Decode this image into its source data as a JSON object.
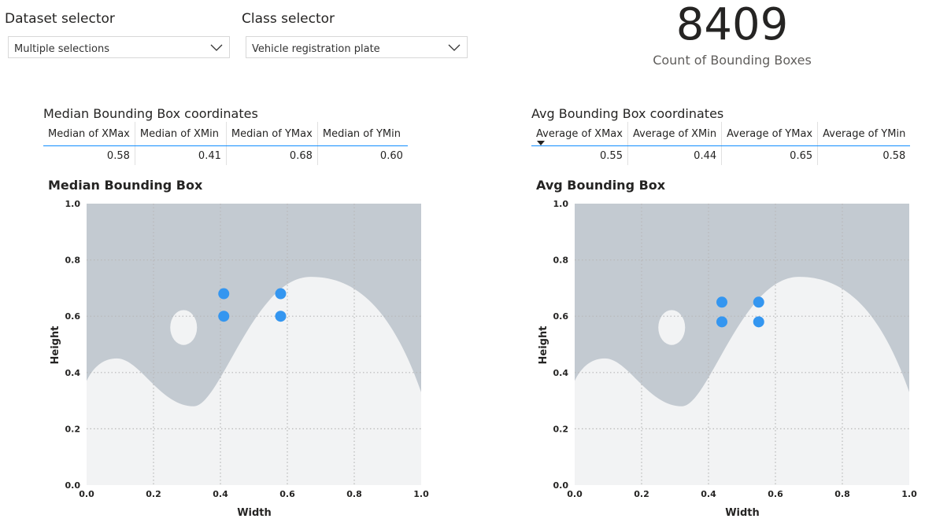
{
  "dataset_selector": {
    "title": "Dataset selector",
    "value": "Multiple selections"
  },
  "class_selector": {
    "title": "Class selector",
    "value": "Vehicle registration plate"
  },
  "kpi": {
    "value": "8409",
    "label": "Count of Bounding Boxes"
  },
  "median_table": {
    "title": "Median Bounding Box coordinates",
    "headers": [
      "Median of XMax",
      "Median of XMin",
      "Median of YMax",
      "Median of YMin"
    ],
    "values": [
      "0.58",
      "0.41",
      "0.68",
      "0.60"
    ]
  },
  "avg_table": {
    "title": "Avg Bounding Box coordinates",
    "headers": [
      "Average of XMax",
      "Average of XMin",
      "Average of YMax",
      "Average of YMin"
    ],
    "values": [
      "0.55",
      "0.44",
      "0.65",
      "0.58"
    ]
  },
  "colors": {
    "point": "#3496f0",
    "background_shape": "#c3cad1",
    "plot_area": "#f2f3f4",
    "table_accent": "#118dff"
  },
  "chart_data": [
    {
      "type": "scatter",
      "title": "Median Bounding Box",
      "xlabel": "Width",
      "ylabel": "Height",
      "xlim": [
        0,
        1
      ],
      "ylim": [
        0,
        1
      ],
      "x_ticks": [
        "0.0",
        "0.2",
        "0.4",
        "0.6",
        "0.8",
        "1.0"
      ],
      "y_ticks": [
        "0.0",
        "0.2",
        "0.4",
        "0.6",
        "0.8",
        "1.0"
      ],
      "grid": true,
      "points": [
        {
          "x": 0.41,
          "y": 0.68
        },
        {
          "x": 0.58,
          "y": 0.68
        },
        {
          "x": 0.41,
          "y": 0.6
        },
        {
          "x": 0.58,
          "y": 0.6
        }
      ]
    },
    {
      "type": "scatter",
      "title": "Avg Bounding Box",
      "xlabel": "Width",
      "ylabel": "Height",
      "xlim": [
        0,
        1
      ],
      "ylim": [
        0,
        1
      ],
      "x_ticks": [
        "0.0",
        "0.2",
        "0.4",
        "0.6",
        "0.8",
        "1.0"
      ],
      "y_ticks": [
        "0.0",
        "0.2",
        "0.4",
        "0.6",
        "0.8",
        "1.0"
      ],
      "grid": true,
      "points": [
        {
          "x": 0.44,
          "y": 0.65
        },
        {
          "x": 0.55,
          "y": 0.65
        },
        {
          "x": 0.44,
          "y": 0.58
        },
        {
          "x": 0.55,
          "y": 0.58
        }
      ]
    }
  ]
}
